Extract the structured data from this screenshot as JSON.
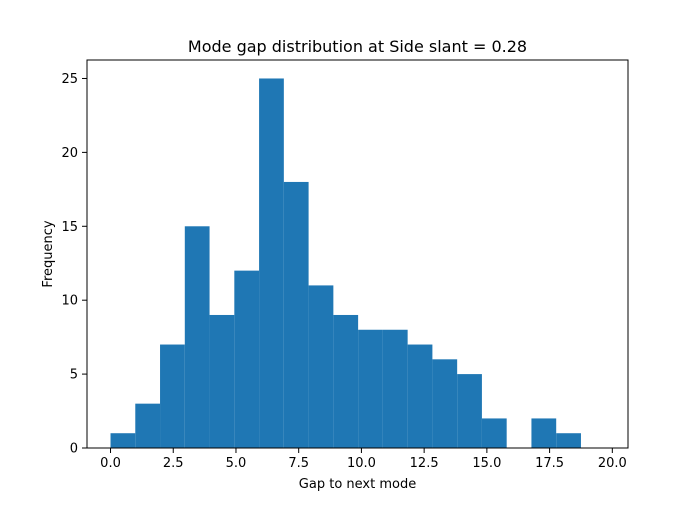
{
  "chart_data": {
    "type": "histogram",
    "title": "Mode gap distribution at Side slant = 0.28",
    "xlabel": "Gap to next mode",
    "ylabel": "Frequency",
    "bin_edges": [
      0.0,
      0.9868,
      1.9737,
      2.9605,
      3.9474,
      4.9342,
      5.9211,
      6.9079,
      7.8947,
      8.8816,
      9.8684,
      10.8553,
      11.8421,
      12.8289,
      13.8158,
      14.8026,
      15.7895,
      16.7763,
      17.7632,
      18.75
    ],
    "counts": [
      1,
      3,
      7,
      15,
      9,
      12,
      25,
      18,
      11,
      9,
      8,
      8,
      7,
      6,
      5,
      2,
      0,
      2,
      1
    ],
    "xlim": [
      -0.9375,
      20.625
    ],
    "ylim": [
      0,
      26.25
    ],
    "xticks": [
      0.0,
      2.5,
      5.0,
      7.5,
      10.0,
      12.5,
      15.0,
      17.5,
      20.0
    ],
    "xtick_labels": [
      "0.0",
      "2.5",
      "5.0",
      "7.5",
      "10.0",
      "12.5",
      "15.0",
      "17.5",
      "20.0"
    ],
    "yticks": [
      0,
      5,
      10,
      15,
      20,
      25
    ],
    "ytick_labels": [
      "0",
      "5",
      "10",
      "15",
      "20",
      "25"
    ],
    "bar_color": "#1f77b4",
    "grid": false,
    "legend": "none"
  }
}
